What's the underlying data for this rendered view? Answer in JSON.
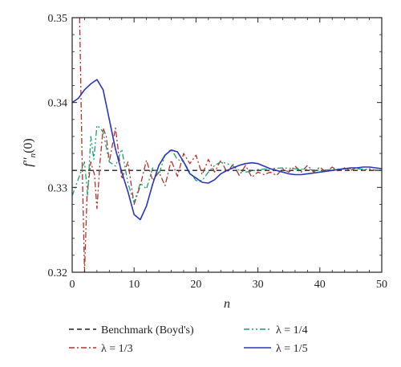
{
  "chart_data": {
    "type": "line",
    "xlabel": "n",
    "ylabel_main": "f''",
    "ylabel_sub": "n",
    "ylabel_tail": "(0)",
    "xlim": [
      0,
      50
    ],
    "ylim": [
      0.32,
      0.35
    ],
    "xticks": [
      0,
      10,
      20,
      30,
      40,
      50
    ],
    "yticks": [
      0.32,
      0.33,
      0.34,
      0.35
    ],
    "benchmark": {
      "name": "Benchmark (Boyd's)",
      "value": 0.332,
      "color": "#222222"
    },
    "series": [
      {
        "name": "λ = 1/3",
        "color": "#b5302a",
        "dash": "7,3,2,3",
        "x": [
          1.2,
          1.6,
          2,
          2.4,
          3,
          3.6,
          4,
          4.5,
          5,
          5.5,
          6,
          7,
          8,
          9,
          10,
          11,
          12,
          13,
          14,
          15,
          16,
          17,
          18,
          19,
          20,
          21,
          22,
          23,
          24,
          25,
          26,
          27,
          28,
          29,
          30,
          31,
          32,
          33,
          34,
          35,
          36,
          37,
          38,
          39,
          40,
          41,
          42,
          43,
          44,
          45,
          46,
          47,
          48,
          49,
          50
        ],
        "y": [
          0.35,
          0.333,
          0.32,
          0.329,
          0.333,
          0.3315,
          0.3275,
          0.333,
          0.337,
          0.336,
          0.333,
          0.337,
          0.331,
          0.333,
          0.328,
          0.3302,
          0.3332,
          0.3308,
          0.3318,
          0.3302,
          0.3332,
          0.3313,
          0.334,
          0.3328,
          0.3338,
          0.3315,
          0.3333,
          0.3318,
          0.3332,
          0.3318,
          0.3327,
          0.3314,
          0.3326,
          0.3312,
          0.3318,
          0.3315,
          0.3318,
          0.3314,
          0.3322,
          0.3318,
          0.3325,
          0.3318,
          0.3326,
          0.3318,
          0.3324,
          0.3318,
          0.3324,
          0.3319,
          0.3323,
          0.332,
          0.3324,
          0.332,
          0.3322,
          0.332,
          0.332
        ]
      },
      {
        "name": "λ = 1/4",
        "color": "#1aa06a",
        "dash": "7,3,2,3,2,3",
        "x": [
          0,
          1,
          2,
          2.5,
          3,
          3.5,
          4,
          4.5,
          5,
          6,
          7,
          8,
          9,
          10,
          11,
          12,
          13,
          14,
          15,
          16,
          17,
          18,
          19,
          20,
          21,
          22,
          23,
          24,
          25,
          26,
          27,
          28,
          29,
          30,
          32,
          34,
          36,
          38,
          40,
          42,
          44,
          46,
          48,
          50
        ],
        "y": [
          0.329,
          0.331,
          0.333,
          0.329,
          0.336,
          0.3333,
          0.3373,
          0.337,
          0.3365,
          0.333,
          0.3325,
          0.3345,
          0.3305,
          0.3282,
          0.3305,
          0.3298,
          0.3323,
          0.3315,
          0.3338,
          0.3345,
          0.3333,
          0.333,
          0.3318,
          0.3308,
          0.3308,
          0.3318,
          0.3326,
          0.333,
          0.3328,
          0.3325,
          0.332,
          0.3318,
          0.3319,
          0.3321,
          0.3322,
          0.3323,
          0.3322,
          0.3321,
          0.332,
          0.3321,
          0.3322,
          0.3322,
          0.3321,
          0.332
        ]
      },
      {
        "name": "λ = 1/5",
        "color": "#2a35b8",
        "dash": "",
        "x": [
          0,
          1,
          2,
          3,
          4,
          5,
          6,
          7,
          8,
          9,
          10,
          11,
          12,
          13,
          14,
          15,
          16,
          17,
          18,
          19,
          20,
          21,
          22,
          23,
          24,
          25,
          26,
          27,
          28,
          29,
          30,
          31,
          32,
          33,
          34,
          35,
          36,
          37,
          38,
          39,
          40,
          41,
          42,
          43,
          44,
          45,
          46,
          47,
          48,
          49,
          50
        ],
        "y": [
          0.34,
          0.3405,
          0.3415,
          0.3422,
          0.3427,
          0.3415,
          0.338,
          0.3345,
          0.3318,
          0.3295,
          0.3268,
          0.3262,
          0.3278,
          0.3304,
          0.3326,
          0.3338,
          0.3344,
          0.3342,
          0.333,
          0.3316,
          0.3311,
          0.3306,
          0.3305,
          0.3309,
          0.3316,
          0.332,
          0.3323,
          0.3326,
          0.3328,
          0.3329,
          0.3328,
          0.3325,
          0.3322,
          0.332,
          0.3318,
          0.3316,
          0.3315,
          0.3315,
          0.3316,
          0.3317,
          0.3318,
          0.3319,
          0.332,
          0.3321,
          0.3322,
          0.3323,
          0.3323,
          0.3324,
          0.3324,
          0.3323,
          0.3322
        ]
      }
    ]
  }
}
